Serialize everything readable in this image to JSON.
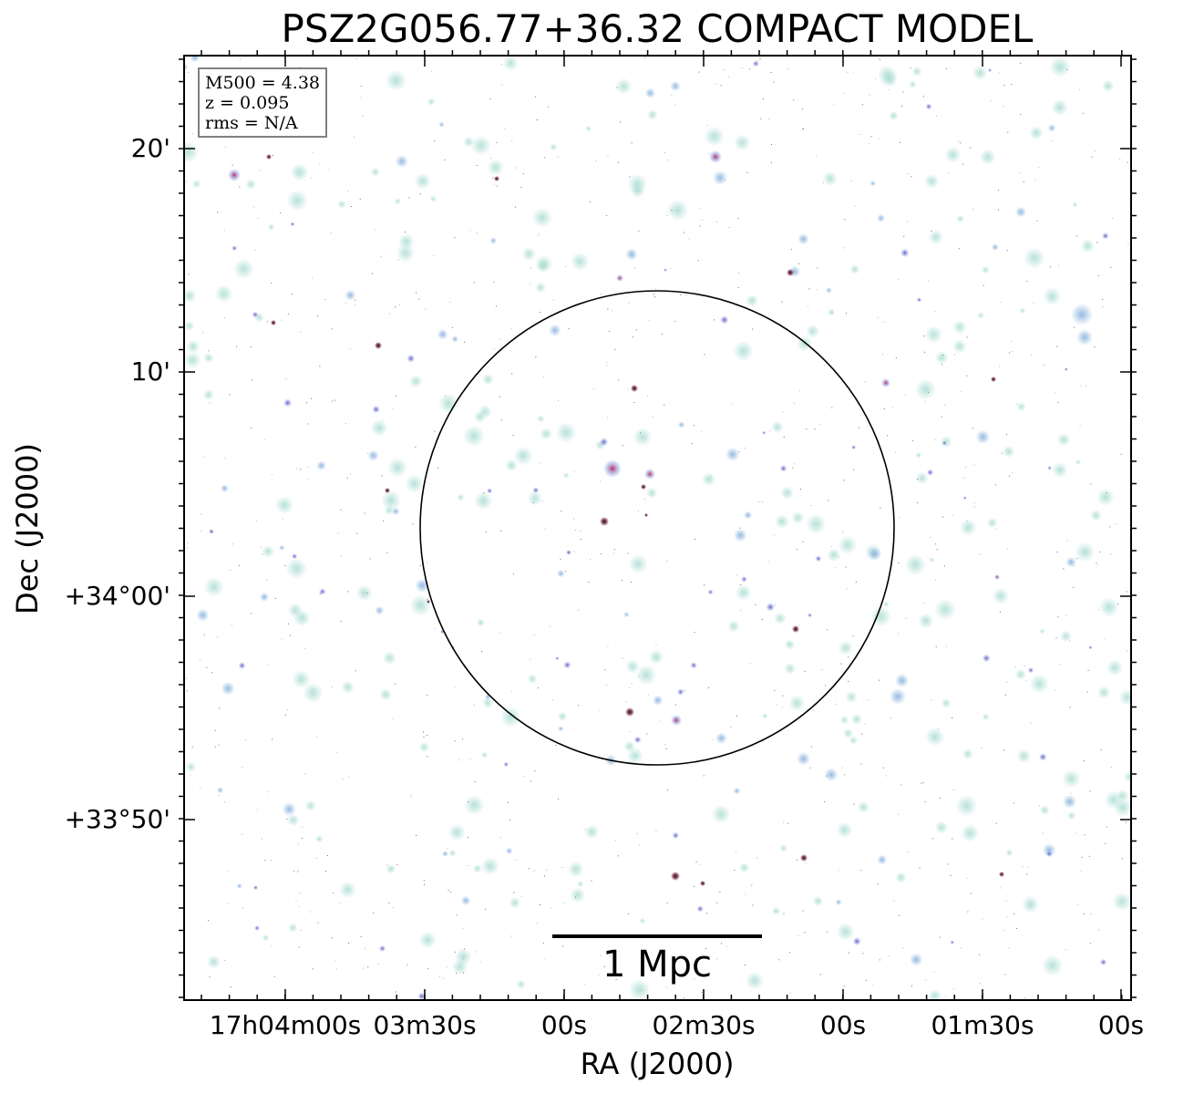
{
  "title": "PSZ2G056.77+36.32 COMPACT MODEL",
  "axes": {
    "xlabel": "RA (J2000)",
    "ylabel": "Dec (J2000)",
    "x_ticks": [
      "17h04m00s",
      "03m30s",
      "00s",
      "02m30s",
      "00s",
      "01m30s",
      "00s"
    ],
    "y_ticks": [
      "20'",
      "10'",
      "+34°00'",
      "+33°50'"
    ]
  },
  "info_box": {
    "mass": "M500 = 4.38",
    "redshift": "z = 0.095",
    "rms": "rms = N/A"
  },
  "scale_bar": {
    "label": "1 Mpc"
  },
  "colors": {
    "frame": "#000000",
    "source_blue": "#9fc3e0",
    "source_teal": "#b8e2da",
    "source_magenta": "#d0306a",
    "source_dark": "#1a1010",
    "circle": "#000000"
  }
}
